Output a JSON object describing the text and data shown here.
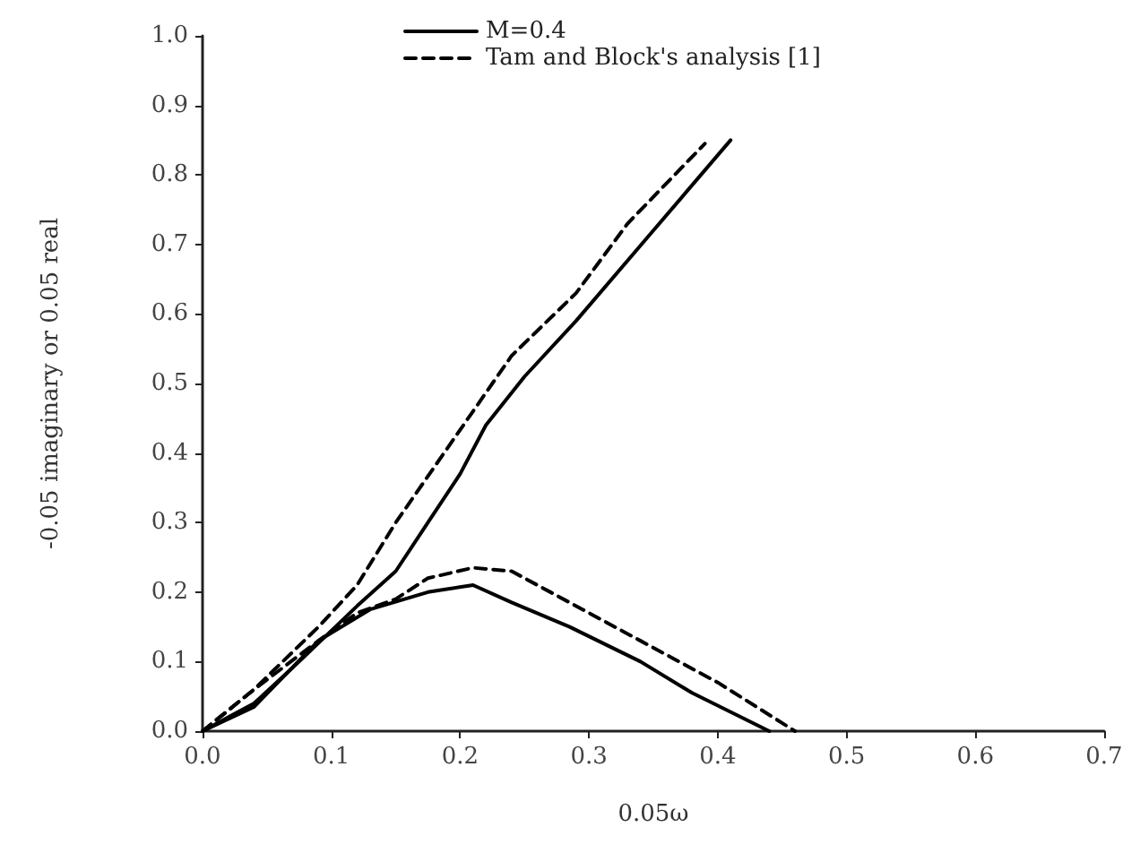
{
  "chart_data": {
    "type": "line",
    "xlabel": "0.05ω",
    "ylabel": "-0.05 imaginary or 0.05 real",
    "xlim": [
      0,
      0.7
    ],
    "ylim": [
      0,
      1.0
    ],
    "xticks": [
      {
        "value": 0,
        "label": "0.0"
      },
      {
        "value": 0.1,
        "label": "0.1"
      },
      {
        "value": 0.2,
        "label": "0.2"
      },
      {
        "value": 0.3,
        "label": "0.3"
      },
      {
        "value": 0.4,
        "label": "0.4"
      },
      {
        "value": 0.5,
        "label": "0.5"
      },
      {
        "value": 0.6,
        "label": "0.6"
      },
      {
        "value": 0.7,
        "label": "0.7"
      }
    ],
    "yticks": [
      {
        "value": 0,
        "label": "0.0"
      },
      {
        "value": 0.1,
        "label": "0.1"
      },
      {
        "value": 0.2,
        "label": "0.2"
      },
      {
        "value": 0.3,
        "label": "0.3"
      },
      {
        "value": 0.4,
        "label": "0.4"
      },
      {
        "value": 0.5,
        "label": "0.5"
      },
      {
        "value": 0.6,
        "label": "0.6"
      },
      {
        "value": 0.7,
        "label": "0.7"
      },
      {
        "value": 0.8,
        "label": "0.8"
      },
      {
        "value": 0.9,
        "label": "0.9"
      },
      {
        "value": 1.0,
        "label": "1.0"
      }
    ],
    "grid": false,
    "legend": "top left",
    "series": [
      {
        "name": "M=0.4",
        "color": "#000000",
        "line_style": "solid",
        "x": [
          0,
          0.04,
          0.075,
          0.12,
          0.15,
          0.175,
          0.2,
          0.22,
          0.25,
          0.29,
          0.35,
          0.41
        ],
        "values": [
          0,
          0.04,
          0.1,
          0.18,
          0.23,
          0.3,
          0.37,
          0.44,
          0.51,
          0.59,
          0.72,
          0.85
        ]
      },
      {
        "name": "Tam and Block's analysis [1]",
        "color": "#000000",
        "line_style": "dashed",
        "x": [
          0,
          0.04,
          0.09,
          0.12,
          0.15,
          0.18,
          0.21,
          0.24,
          0.29,
          0.33,
          0.39
        ],
        "values": [
          0,
          0.06,
          0.15,
          0.21,
          0.3,
          0.38,
          0.46,
          0.54,
          0.63,
          0.73,
          0.845
        ]
      },
      {
        "color": "#000000",
        "line_style": "solid",
        "x": [
          0,
          0.04,
          0.09,
          0.13,
          0.175,
          0.21,
          0.24,
          0.285,
          0.34,
          0.38,
          0.44
        ],
        "values": [
          0,
          0.035,
          0.13,
          0.175,
          0.2,
          0.21,
          0.185,
          0.15,
          0.1,
          0.055,
          0
        ]
      },
      {
        "color": "#000000",
        "line_style": "dashed",
        "x": [
          0,
          0.04,
          0.09,
          0.12,
          0.15,
          0.175,
          0.21,
          0.24,
          0.295,
          0.34,
          0.4,
          0.46
        ],
        "values": [
          0,
          0.06,
          0.13,
          0.17,
          0.19,
          0.22,
          0.235,
          0.23,
          0.175,
          0.13,
          0.07,
          0
        ]
      }
    ]
  }
}
